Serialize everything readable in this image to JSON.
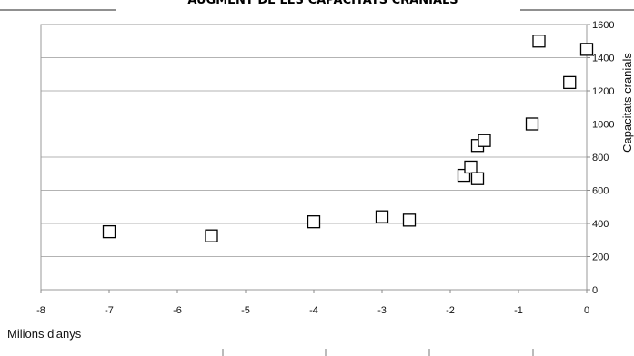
{
  "chart_data": {
    "type": "scatter",
    "title": "AUGMENT DE LES CAPACITATS CRANIALS",
    "xlabel": "Milions d'anys",
    "ylabel": "Capacitats cranials",
    "xlim": [
      -8,
      0
    ],
    "ylim": [
      0,
      1600
    ],
    "x_ticks": [
      "-8",
      "-7",
      "-6",
      "-5",
      "-4",
      "-3",
      "-2",
      "-1",
      "0"
    ],
    "y_ticks": [
      "0",
      "200",
      "400",
      "600",
      "800",
      "1000",
      "1200",
      "1400",
      "1600"
    ],
    "grid": "horizontal",
    "marker": "open-square",
    "points": [
      {
        "x": -7,
        "y": 350
      },
      {
        "x": -5.5,
        "y": 325
      },
      {
        "x": -4,
        "y": 410
      },
      {
        "x": -3,
        "y": 440
      },
      {
        "x": -2.6,
        "y": 420
      },
      {
        "x": -1.8,
        "y": 690
      },
      {
        "x": -1.7,
        "y": 740
      },
      {
        "x": -1.6,
        "y": 670
      },
      {
        "x": -1.6,
        "y": 870
      },
      {
        "x": -1.5,
        "y": 900
      },
      {
        "x": -0.8,
        "y": 1000
      },
      {
        "x": -0.7,
        "y": 1500
      },
      {
        "x": -0.25,
        "y": 1250
      },
      {
        "x": 0,
        "y": 1450
      }
    ]
  }
}
